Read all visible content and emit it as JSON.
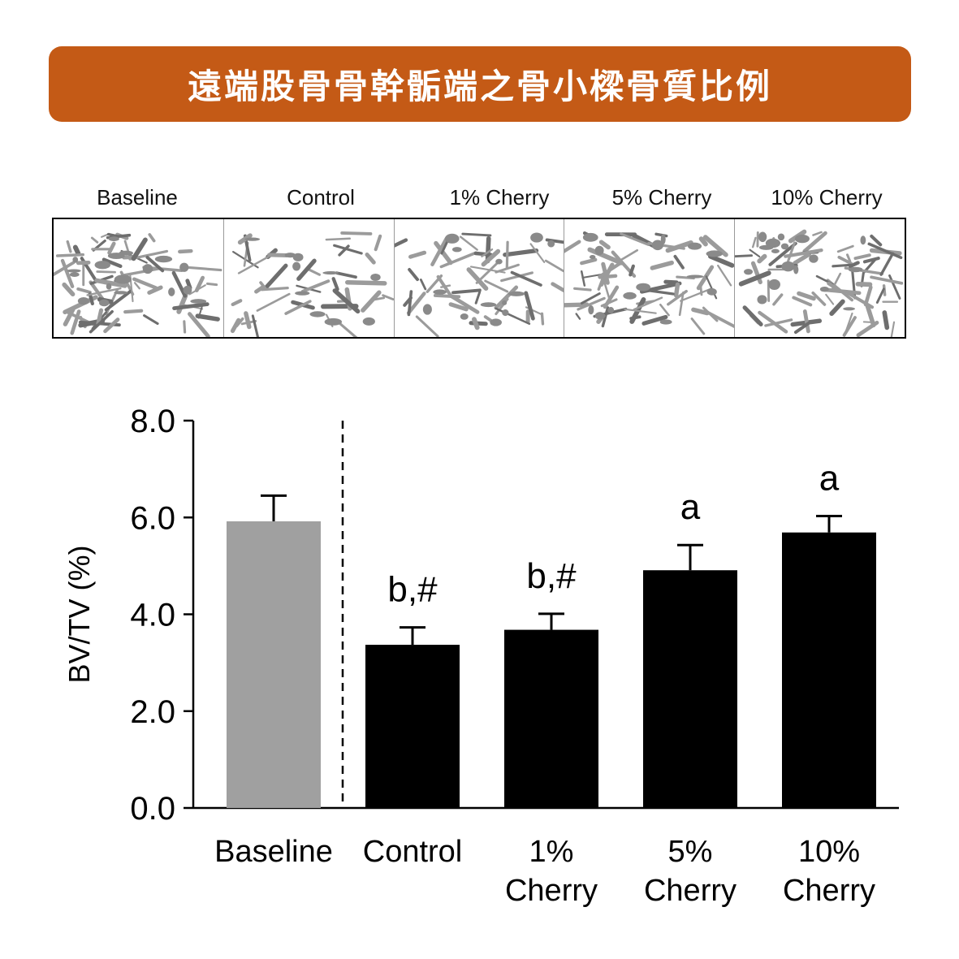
{
  "banner": {
    "title": "遠端股骨骨幹骺端之骨小樑骨質比例",
    "color": "#c45a16"
  },
  "scans": {
    "labels": [
      "Baseline",
      "Control",
      "1% Cherry",
      "5% Cherry",
      "10% Cherry"
    ],
    "density": [
      1.0,
      0.6,
      0.7,
      0.85,
      0.95
    ]
  },
  "chart_data": {
    "type": "bar",
    "title": "",
    "xlabel": "",
    "ylabel": "BV/TV (%)",
    "ylim": [
      0,
      8
    ],
    "yticks": [
      "0.0",
      "2.0",
      "4.0",
      "6.0",
      "8.0"
    ],
    "categories": [
      [
        "Baseline"
      ],
      [
        "Control"
      ],
      [
        "1%",
        "Cherry"
      ],
      [
        "5%",
        "Cherry"
      ],
      [
        "10%",
        "Cherry"
      ]
    ],
    "values": [
      5.92,
      3.37,
      3.68,
      4.91,
      5.69
    ],
    "errors": [
      0.53,
      0.36,
      0.33,
      0.52,
      0.34
    ],
    "annotations": [
      "",
      "b,#",
      "b,#",
      "a",
      "a"
    ],
    "bar_colors": [
      "#a0a0a0",
      "#000000",
      "#000000",
      "#000000",
      "#000000"
    ],
    "divider_after_index": 0,
    "grid": false
  }
}
